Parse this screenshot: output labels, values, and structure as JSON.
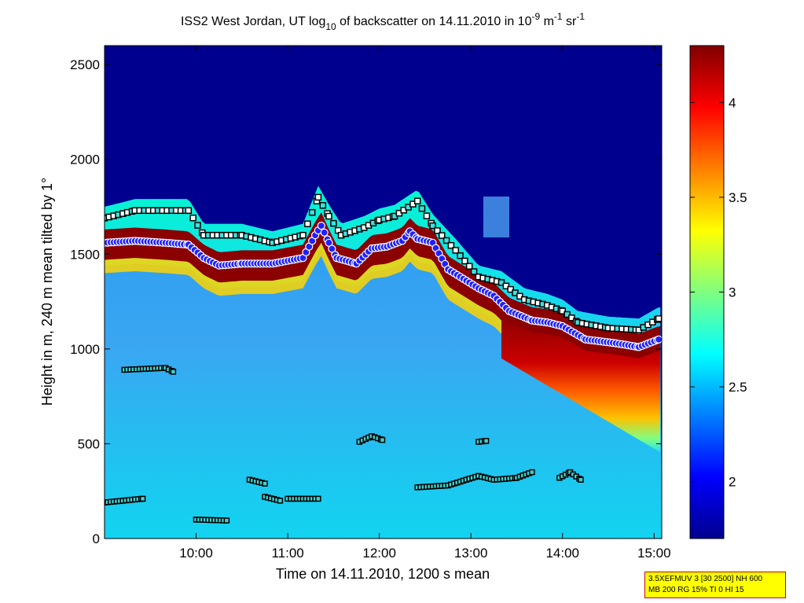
{
  "chart_data": {
    "type": "heatmap",
    "title": {
      "part1": "ISS2 West Jordan, UT log",
      "part1_sub": "10",
      "part2": " of backscatter on 14.11.2010 in 10",
      "part2_sup": "-9",
      "part3": " m",
      "part3_sup": "-1",
      "part4": " sr",
      "part4_sup": "-1"
    },
    "xlabel": "Time on 14.11.2010, 1200 s mean",
    "ylabel": "Height in m, 240 m mean tilted by 1°",
    "xlim": [
      "09:00",
      "15:05"
    ],
    "ylim": [
      0,
      2600
    ],
    "x_ticks": [
      "10:00",
      "11:00",
      "12:00",
      "13:00",
      "14:00",
      "15:00"
    ],
    "y_ticks": [
      "0",
      "500",
      "1000",
      "1500",
      "2000",
      "2500"
    ],
    "colorbar": {
      "range": [
        1.7,
        4.3
      ],
      "ticks": [
        "2",
        "2.5",
        "3",
        "3.5",
        "4"
      ],
      "colormap": "jet"
    },
    "layers": {
      "mixed_layer_top_m": [
        {
          "t": "09:00",
          "h": 1560
        },
        {
          "t": "09:20",
          "h": 1570
        },
        {
          "t": "09:40",
          "h": 1560
        },
        {
          "t": "09:55",
          "h": 1550
        },
        {
          "t": "10:05",
          "h": 1480
        },
        {
          "t": "10:15",
          "h": 1440
        },
        {
          "t": "10:30",
          "h": 1450
        },
        {
          "t": "10:50",
          "h": 1450
        },
        {
          "t": "11:10",
          "h": 1480
        },
        {
          "t": "11:18",
          "h": 1600
        },
        {
          "t": "11:22",
          "h": 1650
        },
        {
          "t": "11:27",
          "h": 1560
        },
        {
          "t": "11:32",
          "h": 1480
        },
        {
          "t": "11:45",
          "h": 1450
        },
        {
          "t": "11:55",
          "h": 1530
        },
        {
          "t": "12:05",
          "h": 1540
        },
        {
          "t": "12:15",
          "h": 1570
        },
        {
          "t": "12:20",
          "h": 1620
        },
        {
          "t": "12:25",
          "h": 1580
        },
        {
          "t": "12:35",
          "h": 1560
        },
        {
          "t": "12:45",
          "h": 1420
        },
        {
          "t": "12:55",
          "h": 1370
        },
        {
          "t": "13:05",
          "h": 1320
        },
        {
          "t": "13:15",
          "h": 1280
        },
        {
          "t": "13:25",
          "h": 1200
        },
        {
          "t": "13:40",
          "h": 1150
        },
        {
          "t": "13:50",
          "h": 1140
        },
        {
          "t": "14:00",
          "h": 1120
        },
        {
          "t": "14:15",
          "h": 1050
        },
        {
          "t": "14:35",
          "h": 1030
        },
        {
          "t": "14:50",
          "h": 1010
        },
        {
          "t": "15:03",
          "h": 1050
        }
      ],
      "upper_boundary_m": [
        {
          "t": "09:00",
          "h": 1690
        },
        {
          "t": "09:20",
          "h": 1730
        },
        {
          "t": "09:55",
          "h": 1730
        },
        {
          "t": "10:05",
          "h": 1600
        },
        {
          "t": "10:30",
          "h": 1600
        },
        {
          "t": "10:50",
          "h": 1560
        },
        {
          "t": "11:10",
          "h": 1600
        },
        {
          "t": "11:20",
          "h": 1800
        },
        {
          "t": "11:27",
          "h": 1700
        },
        {
          "t": "11:35",
          "h": 1600
        },
        {
          "t": "11:50",
          "h": 1640
        },
        {
          "t": "12:00",
          "h": 1680
        },
        {
          "t": "12:10",
          "h": 1700
        },
        {
          "t": "12:25",
          "h": 1780
        },
        {
          "t": "12:35",
          "h": 1650
        },
        {
          "t": "12:50",
          "h": 1520
        },
        {
          "t": "13:05",
          "h": 1380
        },
        {
          "t": "13:20",
          "h": 1350
        },
        {
          "t": "13:35",
          "h": 1260
        },
        {
          "t": "13:50",
          "h": 1230
        },
        {
          "t": "14:00",
          "h": 1200
        },
        {
          "t": "14:10",
          "h": 1140
        },
        {
          "t": "14:30",
          "h": 1110
        },
        {
          "t": "14:50",
          "h": 1100
        },
        {
          "t": "15:03",
          "h": 1160
        }
      ],
      "lower_layers_m": [
        [
          {
            "t": "09:00",
            "h": 190
          },
          {
            "t": "09:25",
            "h": 210
          }
        ],
        [
          {
            "t": "09:13",
            "h": 890
          },
          {
            "t": "09:40",
            "h": 900
          },
          {
            "t": "09:45",
            "h": 880
          }
        ],
        [
          {
            "t": "10:00",
            "h": 100
          },
          {
            "t": "10:20",
            "h": 95
          }
        ],
        [
          {
            "t": "10:35",
            "h": 310
          },
          {
            "t": "10:45",
            "h": 290
          }
        ],
        [
          {
            "t": "10:45",
            "h": 220
          },
          {
            "t": "10:55",
            "h": 200
          }
        ],
        [
          {
            "t": "11:00",
            "h": 210
          },
          {
            "t": "11:20",
            "h": 210
          }
        ],
        [
          {
            "t": "11:47",
            "h": 510
          },
          {
            "t": "11:55",
            "h": 540
          },
          {
            "t": "12:02",
            "h": 520
          }
        ],
        [
          {
            "t": "12:25",
            "h": 270
          },
          {
            "t": "12:45",
            "h": 280
          },
          {
            "t": "13:05",
            "h": 330
          },
          {
            "t": "13:15",
            "h": 310
          },
          {
            "t": "13:30",
            "h": 320
          },
          {
            "t": "13:40",
            "h": 350
          }
        ],
        [
          {
            "t": "13:05",
            "h": 510
          },
          {
            "t": "13:10",
            "h": 515
          }
        ],
        [
          {
            "t": "13:58",
            "h": 320
          },
          {
            "t": "14:05",
            "h": 350
          },
          {
            "t": "14:12",
            "h": 310
          }
        ]
      ]
    }
  },
  "info_box": {
    "line1": "3.5XEFMUV 3 [30 2500] NH 600",
    "line2": "MB 200 RG 15% TI 0 HI 15"
  }
}
